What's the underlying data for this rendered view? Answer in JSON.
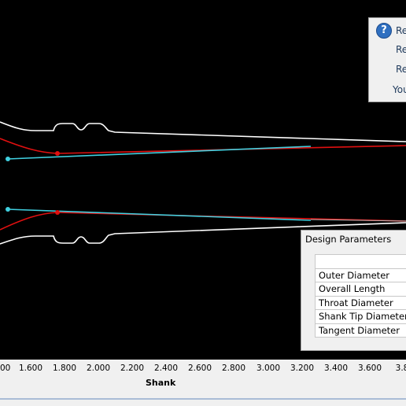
{
  "axis": {
    "ticks": [
      "00",
      "1.600",
      "1.800",
      "2.000",
      "2.200",
      "2.400",
      "2.600",
      "2.800",
      "3.000",
      "3.200",
      "3.400",
      "3.600",
      "3.8"
    ],
    "title": "Shank"
  },
  "popup": {
    "items": [
      "Re",
      "Re",
      "Re",
      "You"
    ]
  },
  "panel": {
    "title": "Design Parameters",
    "rows": [
      "Outer Diameter",
      "Overall Length",
      "Throat Diameter",
      "Shank Tip Diameter",
      "Tangent Diameter"
    ]
  }
}
